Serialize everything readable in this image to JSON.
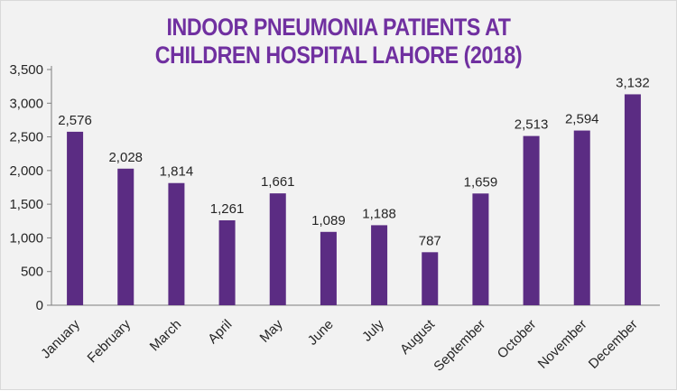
{
  "chart_data": {
    "type": "bar",
    "title_lines": [
      "INDOOR PNEUMONIA PATIENTS AT",
      "CHILDREN HOSPITAL LAHORE (2018)"
    ],
    "categories": [
      "January",
      "February",
      "March",
      "April",
      "May",
      "June",
      "July",
      "August",
      "September",
      "October",
      "November",
      "December"
    ],
    "values": [
      2576,
      2028,
      1814,
      1261,
      1661,
      1089,
      1188,
      787,
      1659,
      2513,
      2594,
      3132
    ],
    "value_labels": [
      "2,576",
      "2,028",
      "1,814",
      "1,261",
      "1,661",
      "1,089",
      "1,188",
      "787",
      "1,659",
      "2,513",
      "2,594",
      "3,132"
    ],
    "y_ticks": [
      0,
      500,
      1000,
      1500,
      2000,
      2500,
      3000,
      3500
    ],
    "y_tick_labels": [
      "0",
      "500",
      "1,000",
      "1,500",
      "2,000",
      "2,500",
      "3,000",
      "3,500"
    ],
    "ylim": [
      0,
      3500
    ],
    "xlabel": "",
    "ylabel": "",
    "grid": false,
    "legend": "none",
    "bar_color": "#5b2c83",
    "title_color": "#7030a0"
  }
}
